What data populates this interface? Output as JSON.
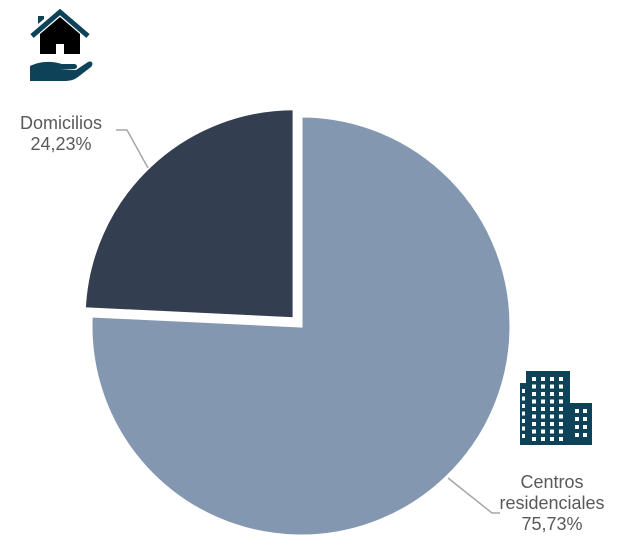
{
  "chart_data": {
    "type": "pie",
    "categories": [
      "Centros residenciales",
      "Domicilios"
    ],
    "values": [
      75.73,
      24.23
    ],
    "value_labels": [
      "75,73%",
      "24,23%"
    ],
    "label_lines": [
      [
        "Centros",
        "residenciales",
        "75,73%"
      ],
      [
        "Domicilios",
        "24,23%"
      ]
    ],
    "colors": [
      "#8497b0",
      "#333f50"
    ],
    "exploded": [
      "Domicilios"
    ],
    "start_angle_deg": 0,
    "direction": "clockwise",
    "legend": "none"
  },
  "icons": {
    "home": {
      "name": "house-in-hand-icon",
      "color": "#0e4259",
      "roof_color": "#0e4259"
    },
    "building": {
      "name": "office-building-icon",
      "color": "#0e4259"
    }
  },
  "colors": {
    "leader_line": "#a6a6a6",
    "label_text": "#595959",
    "slice_border": "#ffffff"
  }
}
